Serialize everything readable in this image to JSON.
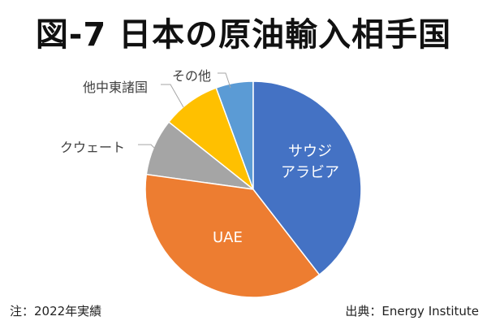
{
  "chart_data": {
    "type": "pie",
    "title": "図-7 日本の原油輸入相手国",
    "categories": [
      "サウジアラビア",
      "UAE",
      "クウェート",
      "他中東諸国",
      "その他"
    ],
    "display_labels": [
      [
        "サウジ",
        "アラビア"
      ],
      [
        "UAE"
      ],
      [
        "クウェート"
      ],
      [
        "他中東諸国"
      ],
      [
        "その他"
      ]
    ],
    "values": [
      39.5,
      37.7,
      8.5,
      8.7,
      5.6
    ],
    "unit": "%",
    "colors": [
      "#4472C4",
      "#ED7D31",
      "#A5A5A5",
      "#FFC000",
      "#5B9BD5"
    ]
  },
  "footnote": "注：2022年実績",
  "source": "出典：Energy Institute"
}
